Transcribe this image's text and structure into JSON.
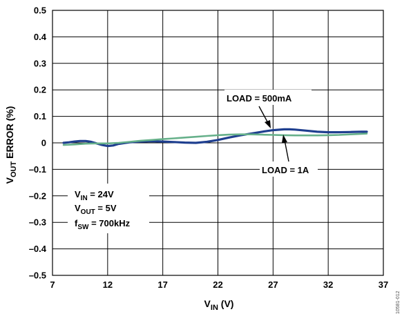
{
  "chart_data": {
    "type": "line",
    "xlabel": {
      "main": "V",
      "sub": "IN",
      "suffix": " (V)"
    },
    "ylabel": {
      "main": "V",
      "sub": "OUT",
      "suffix": " ERROR (%)"
    },
    "xlim": [
      7,
      37
    ],
    "ylim": [
      -0.5,
      0.5
    ],
    "xticks": [
      7,
      12,
      17,
      22,
      27,
      32,
      37
    ],
    "xtick_labels": [
      "7",
      "12",
      "17",
      "22",
      "27",
      "32",
      "37"
    ],
    "yticks": [
      -0.5,
      -0.4,
      -0.3,
      -0.2,
      -0.1,
      0,
      0.1,
      0.2,
      0.3,
      0.4,
      0.5
    ],
    "ytick_labels": [
      "–0.5",
      "–0.4",
      "–0.3",
      "–0.2",
      "–0.1",
      "0",
      "0.1",
      "0.2",
      "0.3",
      "0.4",
      "0.5"
    ],
    "grid": true,
    "series": [
      {
        "name": "LOAD = 500mA",
        "color": "#1f3f8f",
        "x": [
          8,
          8.5,
          9,
          9.5,
          10,
          10.5,
          11,
          11.5,
          12,
          12.5,
          13,
          14,
          15,
          16,
          17,
          18,
          19,
          20,
          21,
          22,
          23,
          24,
          25,
          26,
          27,
          28,
          28.5,
          29,
          30,
          31,
          32,
          33,
          34,
          35,
          35.5
        ],
        "y": [
          0.0,
          0.002,
          0.005,
          0.007,
          0.007,
          0.004,
          -0.002,
          -0.008,
          -0.012,
          -0.01,
          -0.004,
          0.002,
          0.005,
          0.006,
          0.005,
          0.003,
          0.001,
          0.0,
          0.004,
          0.011,
          0.02,
          0.028,
          0.035,
          0.042,
          0.048,
          0.051,
          0.051,
          0.05,
          0.046,
          0.042,
          0.04,
          0.04,
          0.041,
          0.042,
          0.042
        ]
      },
      {
        "name": "LOAD = 1A",
        "color": "#66b08a",
        "x": [
          8,
          9,
          10,
          11,
          12,
          13,
          14,
          15,
          16,
          17,
          18,
          19,
          20,
          21,
          22,
          23,
          24,
          25,
          26,
          27,
          28,
          29,
          30,
          31,
          32,
          33,
          34,
          35,
          35.5
        ],
        "y": [
          -0.008,
          -0.006,
          -0.003,
          -0.002,
          -0.002,
          0.0,
          0.004,
          0.008,
          0.011,
          0.014,
          0.017,
          0.02,
          0.023,
          0.026,
          0.029,
          0.031,
          0.032,
          0.032,
          0.031,
          0.03,
          0.029,
          0.028,
          0.028,
          0.028,
          0.029,
          0.03,
          0.032,
          0.034,
          0.035
        ]
      }
    ],
    "annotations": {
      "load500": {
        "text": "LOAD = 500mA"
      },
      "load1a": {
        "text": "LOAD = 1A"
      },
      "conditions": [
        {
          "main": "V",
          "sub": "IN",
          "suffix": " = 24V"
        },
        {
          "main": "V",
          "sub": "OUT",
          "suffix": " = 5V"
        },
        {
          "main": "f",
          "sub": "SW",
          "suffix": " = 700kHz"
        }
      ]
    },
    "figure_id": "10581-012"
  }
}
